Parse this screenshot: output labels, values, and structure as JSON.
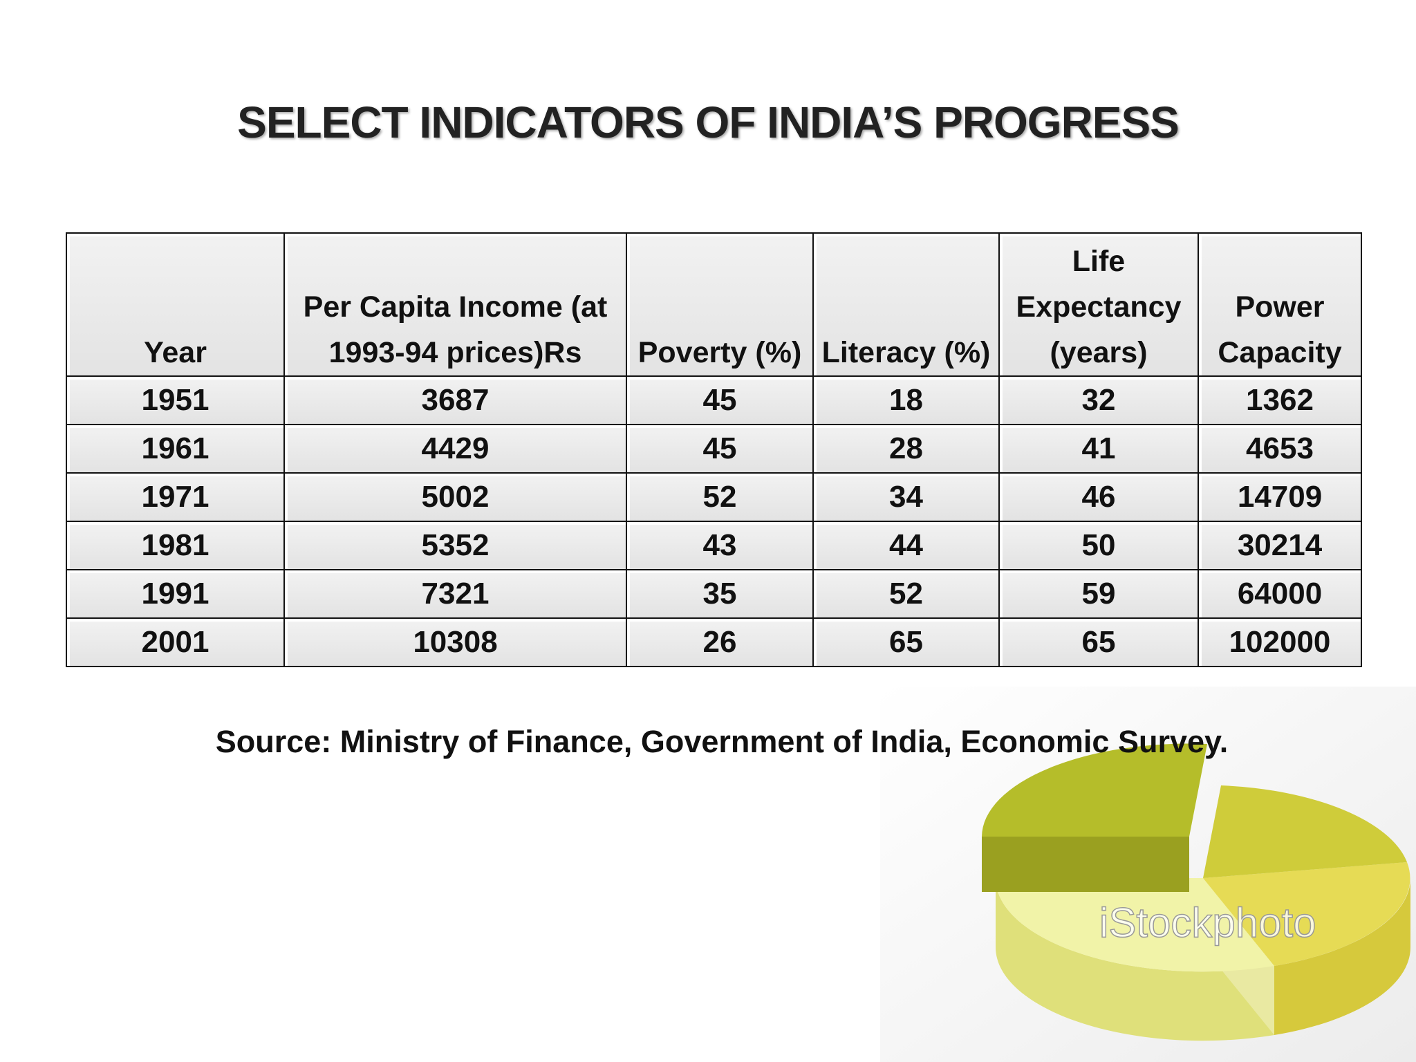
{
  "title": "SELECT INDICATORS OF INDIA’S PROGRESS",
  "table": {
    "header": [
      "Year",
      "Per Capita Income (at 1993-94 prices)Rs",
      "Poverty (%)",
      "Literacy (%)",
      "Life Expectancy (years)",
      "Power Capacity"
    ],
    "rows": [
      [
        1951,
        3687,
        45,
        18,
        32,
        1362
      ],
      [
        1961,
        4429,
        45,
        28,
        41,
        4653
      ],
      [
        1971,
        5002,
        52,
        34,
        46,
        14709
      ],
      [
        1981,
        5352,
        43,
        44,
        50,
        30214
      ],
      [
        1991,
        7321,
        35,
        52,
        59,
        64000
      ],
      [
        2001,
        10308,
        26,
        65,
        65,
        102000
      ]
    ]
  },
  "source": "Source: Ministry of Finance, Government of India, Economic Survey.",
  "image": {
    "watermark": "iStockphoto"
  }
}
